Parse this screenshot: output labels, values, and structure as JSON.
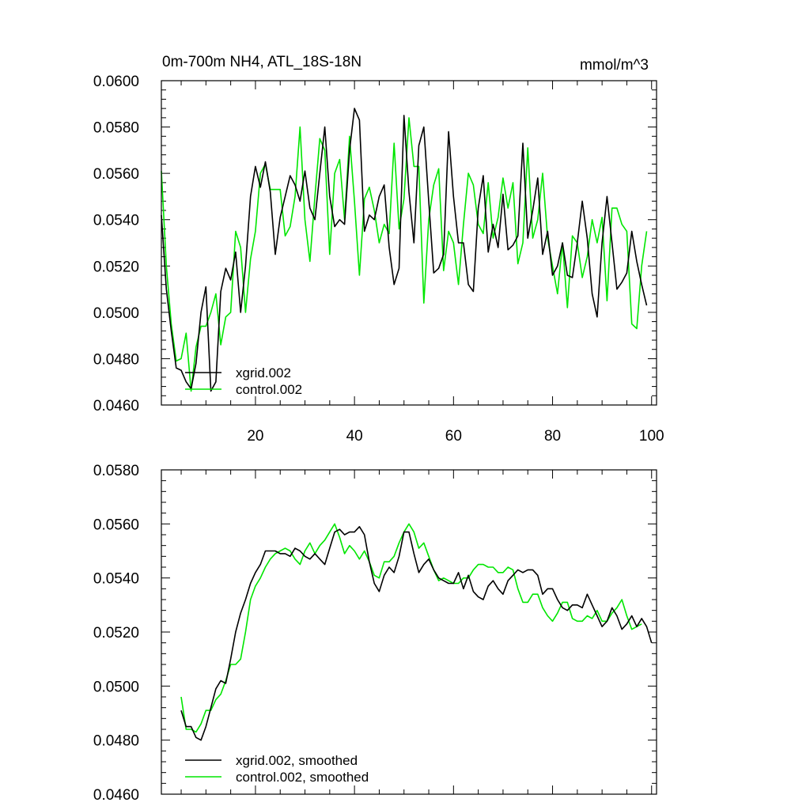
{
  "chart_data": [
    {
      "type": "line",
      "title": "0m-700m NH4, ATL_18S-18N",
      "units": "mmol/m^3",
      "xlabel": "",
      "ylabel": "",
      "xlim": [
        1,
        101
      ],
      "ylim": [
        0.046,
        0.06
      ],
      "x_ticks": [
        20,
        40,
        60,
        80,
        100
      ],
      "x_tick_labels": [
        "20",
        "40",
        "60",
        "80",
        "100"
      ],
      "y_ticks": [
        0.046,
        0.048,
        0.05,
        0.052,
        0.054,
        0.056,
        0.058,
        0.06
      ],
      "y_tick_labels": [
        "0.0460",
        "0.0480",
        "0.0500",
        "0.0520",
        "0.0540",
        "0.0560",
        "0.0580",
        "0.0600"
      ],
      "legend": "bottom-left",
      "grid": false,
      "series": [
        {
          "name": "xgrid.002",
          "color": "#000000",
          "values": [
            0.0542,
            0.051,
            0.0492,
            0.0476,
            0.0475,
            0.047,
            0.0467,
            0.0478,
            0.05,
            0.0511,
            0.0466,
            0.047,
            0.0509,
            0.0519,
            0.0514,
            0.0526,
            0.05,
            0.052,
            0.055,
            0.0563,
            0.0554,
            0.0565,
            0.0552,
            0.0525,
            0.0541,
            0.055,
            0.0559,
            0.0555,
            0.0548,
            0.0561,
            0.0545,
            0.054,
            0.056,
            0.058,
            0.055,
            0.0537,
            0.054,
            0.0538,
            0.057,
            0.0588,
            0.0583,
            0.0535,
            0.0542,
            0.054,
            0.055,
            0.0555,
            0.0528,
            0.0512,
            0.0519,
            0.0585,
            0.0552,
            0.053,
            0.0572,
            0.058,
            0.0548,
            0.0517,
            0.0519,
            0.0525,
            0.0578,
            0.055,
            0.053,
            0.053,
            0.0512,
            0.0509,
            0.0545,
            0.0559,
            0.0526,
            0.0538,
            0.0528,
            0.0551,
            0.0527,
            0.0529,
            0.0533,
            0.0573,
            0.0532,
            0.0544,
            0.0558,
            0.0525,
            0.0535,
            0.0516,
            0.052,
            0.053,
            0.0516,
            0.0515,
            0.053,
            0.0548,
            0.0532,
            0.0508,
            0.0498,
            0.053,
            0.055,
            0.053,
            0.051,
            0.0513,
            0.0517,
            0.0535,
            0.0522,
            0.0512,
            0.0503
          ]
        },
        {
          "name": "control.002",
          "color": "#00e600",
          "values": [
            0.0561,
            0.052,
            0.0495,
            0.0479,
            0.048,
            0.0491,
            0.0466,
            0.0485,
            0.0494,
            0.0494,
            0.05,
            0.0508,
            0.0486,
            0.0498,
            0.05,
            0.0535,
            0.0528,
            0.05,
            0.0523,
            0.0535,
            0.056,
            0.0564,
            0.0553,
            0.0553,
            0.0553,
            0.0533,
            0.0537,
            0.055,
            0.058,
            0.054,
            0.0522,
            0.055,
            0.0575,
            0.057,
            0.0525,
            0.056,
            0.0566,
            0.054,
            0.0576,
            0.0548,
            0.0516,
            0.0549,
            0.0554,
            0.0544,
            0.053,
            0.0538,
            0.0534,
            0.0573,
            0.0536,
            0.0549,
            0.0584,
            0.0563,
            0.0563,
            0.0504,
            0.054,
            0.0555,
            0.0562,
            0.0518,
            0.0535,
            0.053,
            0.0512,
            0.0538,
            0.056,
            0.0555,
            0.0538,
            0.0534,
            0.0556,
            0.0532,
            0.0541,
            0.0558,
            0.0545,
            0.0556,
            0.0521,
            0.053,
            0.0571,
            0.0532,
            0.054,
            0.056,
            0.0532,
            0.052,
            0.0508,
            0.053,
            0.0502,
            0.0533,
            0.053,
            0.0515,
            0.0524,
            0.054,
            0.053,
            0.0541,
            0.0505,
            0.0545,
            0.0545,
            0.0538,
            0.0535,
            0.0495,
            0.0493,
            0.052,
            0.0535
          ]
        }
      ],
      "legend_entries": [
        "xgrid.002",
        "control.002"
      ]
    },
    {
      "type": "line",
      "title": "",
      "xlabel": "",
      "ylabel": "",
      "xlim": [
        1,
        101
      ],
      "ylim": [
        0.046,
        0.058
      ],
      "x_ticks": [
        20,
        40,
        60,
        80,
        100
      ],
      "y_ticks": [
        0.046,
        0.048,
        0.05,
        0.052,
        0.054,
        0.056,
        0.058
      ],
      "y_tick_labels": [
        "0.0460",
        "0.0480",
        "0.0500",
        "0.0520",
        "0.0540",
        "0.0560",
        "0.0580"
      ],
      "legend": "bottom-left",
      "grid": false,
      "series": [
        {
          "name": "xgrid.002, smoothed",
          "color": "#000000",
          "x_start": 5,
          "values": [
            0.0491,
            0.0485,
            0.0485,
            0.0481,
            0.048,
            0.0485,
            0.0492,
            0.0499,
            0.0502,
            0.0501,
            0.051,
            0.052,
            0.0527,
            0.0532,
            0.0538,
            0.0542,
            0.0545,
            0.055,
            0.055,
            0.055,
            0.0549,
            0.0549,
            0.0548,
            0.0551,
            0.055,
            0.0548,
            0.0547,
            0.0549,
            0.0547,
            0.0545,
            0.0551,
            0.0557,
            0.0558,
            0.0556,
            0.0557,
            0.0557,
            0.0559,
            0.0556,
            0.0546,
            0.0538,
            0.0535,
            0.0541,
            0.0544,
            0.0542,
            0.0548,
            0.0557,
            0.0557,
            0.0549,
            0.0542,
            0.0545,
            0.0547,
            0.0543,
            0.054,
            0.0539,
            0.0538,
            0.0538,
            0.0542,
            0.0536,
            0.0541,
            0.0535,
            0.0533,
            0.0532,
            0.0537,
            0.0539,
            0.0536,
            0.0534,
            0.0539,
            0.0541,
            0.0543,
            0.0542,
            0.0543,
            0.0543,
            0.0541,
            0.0534,
            0.0536,
            0.0536,
            0.0532,
            0.0529,
            0.0528,
            0.053,
            0.053,
            0.0529,
            0.0534,
            0.053,
            0.0526,
            0.0522,
            0.0524,
            0.0529,
            0.0526,
            0.0521,
            0.0523,
            0.0526,
            0.0522,
            0.0525,
            0.0522,
            0.0516
          ]
        },
        {
          "name": "control.002, smoothed",
          "color": "#00e600",
          "x_start": 5,
          "values": [
            0.0496,
            0.0484,
            0.0484,
            0.0483,
            0.0486,
            0.0491,
            0.0491,
            0.0495,
            0.0497,
            0.0502,
            0.0508,
            0.0508,
            0.051,
            0.052,
            0.0532,
            0.0537,
            0.054,
            0.0544,
            0.0547,
            0.0549,
            0.055,
            0.0551,
            0.055,
            0.0547,
            0.0545,
            0.055,
            0.0553,
            0.0549,
            0.0552,
            0.0554,
            0.0557,
            0.056,
            0.0555,
            0.0549,
            0.0552,
            0.055,
            0.0547,
            0.055,
            0.0546,
            0.0541,
            0.054,
            0.0546,
            0.0546,
            0.0548,
            0.0553,
            0.0557,
            0.056,
            0.0557,
            0.0551,
            0.0553,
            0.0548,
            0.0543,
            0.0539,
            0.054,
            0.0539,
            0.0538,
            0.0538,
            0.054,
            0.054,
            0.0543,
            0.0545,
            0.0545,
            0.0544,
            0.0544,
            0.0542,
            0.0542,
            0.0544,
            0.0543,
            0.0536,
            0.0531,
            0.0531,
            0.0534,
            0.0534,
            0.0529,
            0.0526,
            0.0524,
            0.0527,
            0.0531,
            0.0531,
            0.0525,
            0.0524,
            0.0524,
            0.0526,
            0.0525,
            0.0528,
            0.0524,
            0.0524,
            0.0527,
            0.0529,
            0.0532,
            0.0526,
            0.0521,
            0.0522,
            0.0523
          ]
        }
      ],
      "legend_entries": [
        "xgrid.002, smoothed",
        "control.002, smoothed"
      ]
    }
  ]
}
